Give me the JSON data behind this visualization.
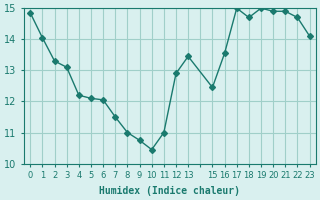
{
  "x": [
    0,
    1,
    2,
    3,
    4,
    5,
    6,
    7,
    8,
    9,
    10,
    11,
    12,
    13,
    15,
    16,
    17,
    18,
    19,
    20,
    21,
    22,
    23
  ],
  "y": [
    14.85,
    14.05,
    13.3,
    13.1,
    12.2,
    12.1,
    12.05,
    11.5,
    11.0,
    10.75,
    10.45,
    11.0,
    12.9,
    13.45,
    12.45,
    13.55,
    15.0,
    14.7,
    15.0,
    14.9,
    14.9,
    14.7,
    14.1
  ],
  "xlabel": "Humidex (Indice chaleur)",
  "ylim": [
    10,
    15
  ],
  "yticks": [
    10,
    11,
    12,
    13,
    14,
    15
  ],
  "line_color": "#1a7a6e",
  "marker": "D",
  "marker_size": 3,
  "bg_color": "#d9f0ef",
  "grid_color": "#a0cfc9"
}
